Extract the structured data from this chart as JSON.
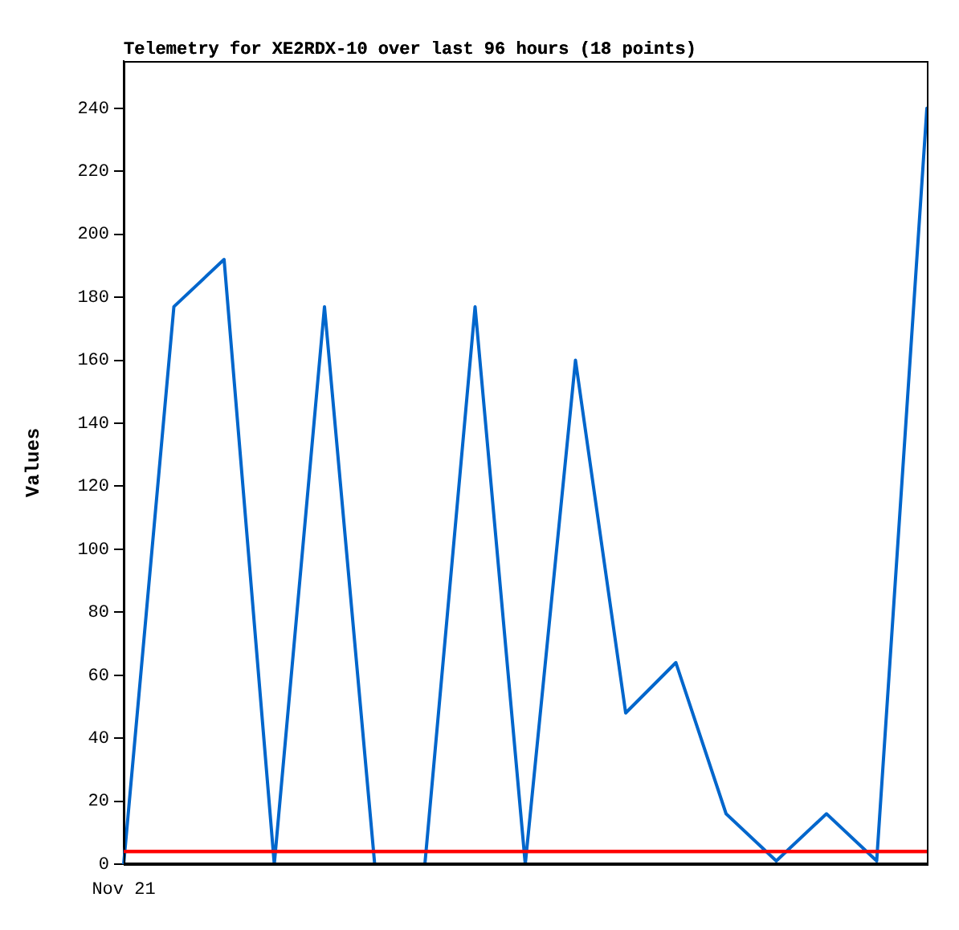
{
  "chart_data": {
    "type": "line",
    "title": "Telemetry for XE2RDX-10 over last 96 hours (18 points)",
    "ylabel": "Values",
    "categories": [
      "Nov 21",
      null,
      null,
      null,
      null,
      null,
      null,
      null,
      null,
      null,
      null,
      null,
      null,
      null,
      null,
      null,
      null
    ],
    "series": [
      {
        "color": "#0066cc",
        "values": [
          0,
          177,
          192,
          0,
          177,
          0,
          0,
          177,
          0,
          160,
          48,
          64,
          16,
          1,
          16,
          1,
          240
        ]
      }
    ],
    "ref_lines": [
      {
        "axis": "y",
        "value": 4,
        "color": "#ff0000"
      },
      {
        "axis": "y",
        "value": 0,
        "color": "#000000"
      }
    ],
    "ylim": [
      0,
      255
    ],
    "yticks": [
      0,
      20,
      40,
      60,
      80,
      100,
      120,
      140,
      160,
      180,
      200,
      220,
      240
    ],
    "grid": false,
    "legend": false,
    "marker": "none",
    "line_style": "solid"
  }
}
